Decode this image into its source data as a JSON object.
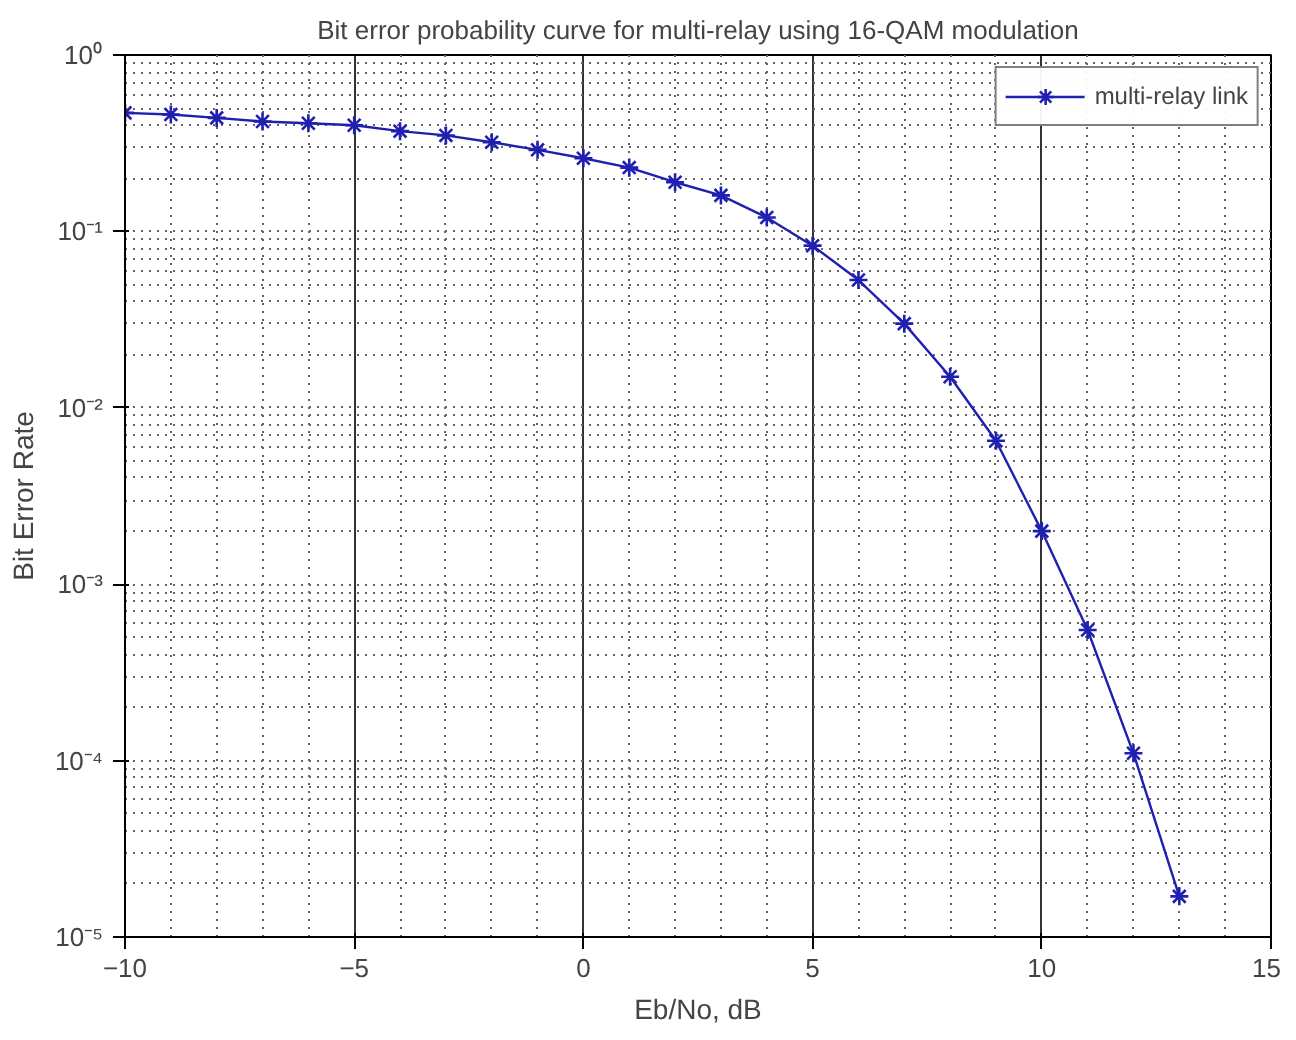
{
  "chart_data": {
    "type": "line",
    "title": "Bit error probability curve for multi-relay using 16-QAM modulation",
    "xlabel": "Eb/No, dB",
    "ylabel": "Bit Error Rate",
    "x": [
      -10,
      -9,
      -8,
      -7,
      -6,
      -5,
      -4,
      -3,
      -2,
      -1,
      0,
      1,
      2,
      3,
      4,
      5,
      6,
      7,
      8,
      9,
      10,
      11,
      12,
      13
    ],
    "series": [
      {
        "name": "multi-relay link",
        "color": "#2020b0",
        "values": [
          0.47,
          0.46,
          0.44,
          0.42,
          0.41,
          0.4,
          0.37,
          0.35,
          0.32,
          0.29,
          0.26,
          0.23,
          0.19,
          0.16,
          0.12,
          0.083,
          0.053,
          0.03,
          0.015,
          0.0065,
          0.002,
          0.00055,
          0.00011,
          1.7e-05
        ]
      }
    ],
    "xlim": [
      -10,
      15
    ],
    "xticks": [
      -10,
      -5,
      0,
      5,
      10,
      15
    ],
    "ylim": [
      1e-05,
      1
    ],
    "yticks": [
      {
        "value": 1e-05,
        "label": "10⁻⁵"
      },
      {
        "value": 0.0001,
        "label": "10⁻⁴"
      },
      {
        "value": 0.001,
        "label": "10⁻³"
      },
      {
        "value": 0.01,
        "label": "10⁻²"
      },
      {
        "value": 0.1,
        "label": "10⁻¹"
      },
      {
        "value": 1,
        "label": "10⁰"
      }
    ],
    "log": "y",
    "grid": true,
    "legend": "top right",
    "marker": "cross",
    "line_style": "solid"
  }
}
